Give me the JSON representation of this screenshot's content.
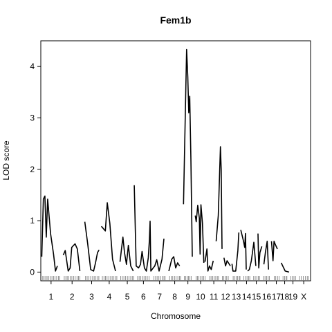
{
  "chart_data": {
    "type": "line",
    "title": "Fem1b",
    "xlabel": "Chromosome",
    "ylabel": "LOD score",
    "ylim": [
      -0.17,
      4.5
    ],
    "yticks": [
      0,
      1,
      2,
      3,
      4
    ],
    "chromosomes": [
      {
        "label": "1",
        "start": 0,
        "len": 9.5
      },
      {
        "label": "2",
        "start": 11,
        "len": 9
      },
      {
        "label": "3",
        "start": 22,
        "len": 7
      },
      {
        "label": "4",
        "start": 30.5,
        "len": 8
      },
      {
        "label": "5",
        "start": 40,
        "len": 7.5
      },
      {
        "label": "6",
        "start": 48.5,
        "len": 7
      },
      {
        "label": "7",
        "start": 57,
        "len": 6.5
      },
      {
        "label": "8",
        "start": 65,
        "len": 6
      },
      {
        "label": "9",
        "start": 72.5,
        "len": 4.5
      },
      {
        "label": "10",
        "start": 78.5,
        "len": 5.5
      },
      {
        "label": "11",
        "start": 85.5,
        "len": 5
      },
      {
        "label": "12",
        "start": 92,
        "len": 4
      },
      {
        "label": "13",
        "start": 97.5,
        "len": 4
      },
      {
        "label": "14",
        "start": 103,
        "len": 3.5
      },
      {
        "label": "15",
        "start": 108,
        "len": 3.5
      },
      {
        "label": "16",
        "start": 113,
        "len": 4
      },
      {
        "label": "17",
        "start": 118.5,
        "len": 3
      },
      {
        "label": "18",
        "start": 123,
        "len": 2.5
      },
      {
        "label": "19",
        "start": 127,
        "len": 3
      },
      {
        "label": "X",
        "start": 131.5,
        "len": 5
      }
    ],
    "xrange": [
      -0.5,
      137.5
    ],
    "series": [
      {
        "values": [
          [
            0,
            0.3
          ],
          [
            0.8,
            1.42
          ],
          [
            1.6,
            1.48
          ],
          [
            2.3,
            0.68
          ],
          [
            3.0,
            1.42
          ],
          [
            4.5,
            0.75
          ],
          [
            6.0,
            0.35
          ],
          [
            7.0,
            0.02
          ],
          [
            8.0,
            0.12
          ]
        ]
      },
      {
        "values": [
          [
            11,
            0.33
          ],
          [
            12,
            0.42
          ],
          [
            13.5,
            0.02
          ],
          [
            14.5,
            0.08
          ],
          [
            15.3,
            0.48
          ],
          [
            17,
            0.55
          ],
          [
            18.2,
            0.45
          ],
          [
            19.5,
            0.02
          ]
        ]
      },
      {
        "values": [
          [
            22,
            0.98
          ],
          [
            23.5,
            0.55
          ],
          [
            25,
            0.05
          ],
          [
            26.5,
            0.02
          ],
          [
            27.5,
            0.18
          ],
          [
            28.5,
            0.38
          ],
          [
            29.3,
            0.43
          ]
        ]
      },
      {
        "values": [
          [
            30.5,
            0.89
          ],
          [
            32.5,
            0.8
          ],
          [
            33.5,
            1.35
          ],
          [
            34.8,
            0.95
          ],
          [
            36.2,
            0.25
          ],
          [
            37.7,
            0.02
          ]
        ]
      },
      {
        "values": [
          [
            40,
            0.2
          ],
          [
            41.5,
            0.68
          ],
          [
            42.3,
            0.38
          ],
          [
            43.3,
            0.15
          ],
          [
            44.3,
            0.52
          ],
          [
            45.5,
            0.12
          ],
          [
            46.8,
            0.02
          ]
        ]
      },
      {
        "values": [
          [
            47.3,
            1.69
          ],
          [
            48.3,
            0.12
          ],
          [
            49.5,
            0.08
          ],
          [
            50.5,
            0.15
          ],
          [
            51.3,
            0.4
          ],
          [
            52.5,
            0.08
          ],
          [
            53.5,
            0.02
          ],
          [
            54.5,
            0.28
          ],
          [
            55.1,
            0.65
          ]
        ]
      },
      {
        "values": [
          [
            55.1,
            0.65
          ],
          [
            55.4,
            0.99
          ],
          [
            55.8,
            0.02
          ],
          [
            57.0,
            0.08
          ],
          [
            57.8,
            0.12
          ],
          [
            58.8,
            0.24
          ],
          [
            60,
            0.02
          ],
          [
            61.5,
            0.25
          ],
          [
            62.5,
            0.65
          ]
        ]
      },
      {
        "values": [
          [
            65,
            0.02
          ],
          [
            66.5,
            0.25
          ],
          [
            67.5,
            0.3
          ],
          [
            68.5,
            0.08
          ],
          [
            69.5,
            0.18
          ],
          [
            70.5,
            0.12
          ]
        ]
      },
      {
        "values": [
          [
            72.5,
            1.32
          ],
          [
            73.5,
            3.2
          ],
          [
            74.1,
            4.33
          ],
          [
            74.7,
            3.8
          ],
          [
            75.2,
            3.1
          ],
          [
            75.7,
            3.42
          ],
          [
            76.3,
            2.2
          ],
          [
            77.0,
            0.3
          ]
        ]
      },
      {
        "values": [
          [
            78.5,
            1.1
          ],
          [
            79.0,
            0.98
          ],
          [
            79.8,
            1.3
          ],
          [
            80.6,
            1.05
          ],
          [
            81.0,
            0.35
          ],
          [
            81.4,
            1.31
          ],
          [
            82.2,
            0.95
          ],
          [
            82.9,
            0.18
          ]
        ]
      },
      {
        "values": [
          [
            83.5,
            0.2
          ],
          [
            84.5,
            0.45
          ],
          [
            85.0,
            0.02
          ],
          [
            85.8,
            0.12
          ],
          [
            86.7,
            0.05
          ],
          [
            87.7,
            0.22
          ]
        ]
      },
      {
        "values": [
          [
            89.2,
            0.6
          ],
          [
            90.3,
            1.1
          ],
          [
            91.4,
            2.44
          ],
          [
            91.8,
            2.0
          ],
          [
            92.2,
            0.45
          ]
        ]
      },
      {
        "values": [
          [
            93.2,
            0.28
          ],
          [
            94.0,
            0.12
          ],
          [
            94.8,
            0.22
          ],
          [
            96.5,
            0.12
          ]
        ]
      },
      {
        "values": [
          [
            97.3,
            0.16
          ],
          [
            97.8,
            0.02
          ],
          [
            99.2,
            0.02
          ],
          [
            100.3,
            0.42
          ],
          [
            100.8,
            0.77
          ]
        ]
      },
      {
        "values": [
          [
            101.8,
            0.82
          ],
          [
            103.2,
            0.6
          ],
          [
            103.8,
            0.48
          ],
          [
            104.2,
            0.75
          ],
          [
            104.6,
            0.05
          ]
        ]
      },
      {
        "values": [
          [
            105.3,
            0.02
          ],
          [
            106.2,
            0.05
          ],
          [
            107.2,
            0.22
          ],
          [
            108.5,
            0.58
          ],
          [
            109.5,
            0.12
          ]
        ]
      },
      {
        "values": [
          [
            110.6,
            0.75
          ],
          [
            111.0,
            0.08
          ],
          [
            111.6,
            0.38
          ],
          [
            112.6,
            0.5
          ]
        ]
      },
      {
        "values": [
          [
            113.6,
            0.15
          ],
          [
            114.4,
            0.38
          ],
          [
            115.3,
            0.6
          ],
          [
            116.0,
            0.05
          ]
        ]
      },
      {
        "values": [
          [
            117.5,
            0.6
          ],
          [
            118.3,
            0.22
          ],
          [
            118.8,
            0.6
          ],
          [
            119.3,
            0.55
          ],
          [
            120.5,
            0.45
          ]
        ]
      },
      {
        "values": [
          [
            122.5,
            0.18
          ],
          [
            124.5,
            0.02
          ],
          [
            126.5,
            0.0
          ]
        ]
      }
    ],
    "markers": [
      0.5,
      1.2,
      2,
      2.7,
      3.5,
      4.3,
      5.2,
      6,
      6.8,
      7.6,
      8.5,
      9.2,
      11.5,
      12.3,
      13,
      13.8,
      14.6,
      15.4,
      16.3,
      17.1,
      18,
      18.8,
      19.5,
      22.4,
      23.2,
      24.1,
      25,
      26,
      26.8,
      27.7,
      28.6,
      29.2,
      31,
      31.8,
      32.6,
      33.4,
      34.3,
      35.2,
      36,
      36.9,
      37.8,
      38.4,
      40.4,
      41.2,
      42,
      42.9,
      43.8,
      44.6,
      45.5,
      46.3,
      47,
      49,
      49.8,
      50.6,
      51.5,
      52.3,
      53.2,
      54,
      54.9,
      57.4,
      58.2,
      59,
      59.9,
      60.7,
      61.6,
      62.5,
      63.1,
      65.4,
      66.2,
      67,
      67.9,
      68.7,
      69.6,
      70.4,
      71,
      72.9,
      73.6,
      74.3,
      75,
      75.7,
      76.4,
      78.9,
      79.6,
      80.4,
      81.2,
      82,
      82.8,
      83.5,
      85.9,
      86.6,
      87.4,
      88.2,
      89,
      89.8,
      90.4,
      92.4,
      93.1,
      93.8,
      94.6,
      95.4,
      97.9,
      98.6,
      99.4,
      100.2,
      101,
      101.4,
      103.4,
      104.2,
      105,
      105.8,
      106.4,
      108.4,
      109.2,
      110,
      110.8,
      111.4,
      113.4,
      114.2,
      115,
      115.8,
      116.4,
      118.9,
      119.7,
      120.6,
      121.4,
      123.4,
      124.2,
      125,
      125.4,
      127.4,
      128.2,
      129,
      129.8,
      131.9,
      132.8,
      133.8,
      134.8,
      135.8,
      136.3
    ]
  }
}
